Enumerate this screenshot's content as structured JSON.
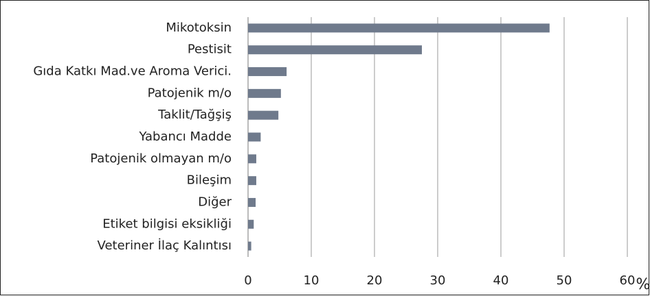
{
  "chart_data": {
    "type": "bar",
    "orientation": "horizontal",
    "categories": [
      "Mikotoksin",
      "Pestisit",
      "Gıda Katkı Mad.ve Aroma Verici.",
      "Patojenik m/o",
      "Taklit/Tağşiş",
      "Yabancı Madde",
      "Patojenik olmayan m/o",
      "Bileşim",
      "Diğer",
      "Etiket bilgisi eksikliği",
      "Veteriner İlaç Kalıntısı"
    ],
    "values": [
      47.7,
      27.5,
      6.1,
      5.2,
      4.8,
      2.0,
      1.3,
      1.3,
      1.2,
      0.9,
      0.5
    ],
    "color": "#6f7a8c",
    "xlim": [
      0,
      60
    ],
    "xticks": [
      0,
      10,
      20,
      30,
      40,
      50,
      60
    ],
    "xlabel": "%",
    "grid": true
  }
}
